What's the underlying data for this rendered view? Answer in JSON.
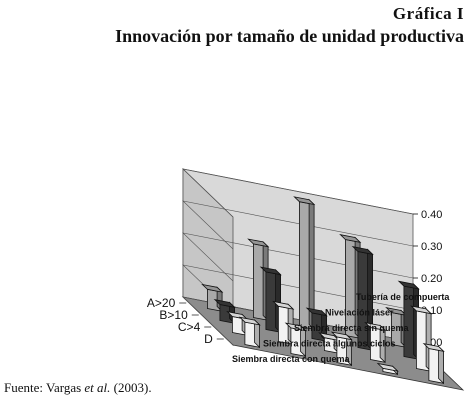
{
  "figure": {
    "label": "Gráfica I",
    "title": "Innovación por tamaño de unidad productiva",
    "source_prefix": "Fuente: Vargas ",
    "source_etal": "et al.",
    "source_suffix": " (2003)."
  },
  "chart_data": {
    "type": "bar3d",
    "title": "Innovación por tamaño de unidad productiva",
    "rows": [
      "A>20",
      "B>10",
      "C>4",
      "D"
    ],
    "categories": [
      "Siembra directa con quema",
      "Siembra directa algunos ciclos",
      "Siembra directa sin quema",
      "Nivelación láser",
      "Tubería de compuerta"
    ],
    "series": [
      {
        "row": "A>20",
        "color": "#a9a9a9",
        "values": [
          0.06,
          0.23,
          0.39,
          0.3,
          0.1
        ]
      },
      {
        "row": "B>10",
        "color": "#3a3a3a",
        "values": [
          0.05,
          0.18,
          0.08,
          0.3,
          0.22
        ]
      },
      {
        "row": "C>4",
        "color": "#f2f2f2",
        "values": [
          0.05,
          0.11,
          0.04,
          0.1,
          0.18
        ]
      },
      {
        "row": "D",
        "color": "#f2f2f2",
        "values": [
          0.07,
          0.08,
          0.08,
          0.01,
          0.1
        ]
      }
    ],
    "zlim": [
      0,
      0.4
    ],
    "zticks": [
      "0.00",
      "0.10",
      "0.20",
      "0.30",
      "0.40"
    ]
  }
}
